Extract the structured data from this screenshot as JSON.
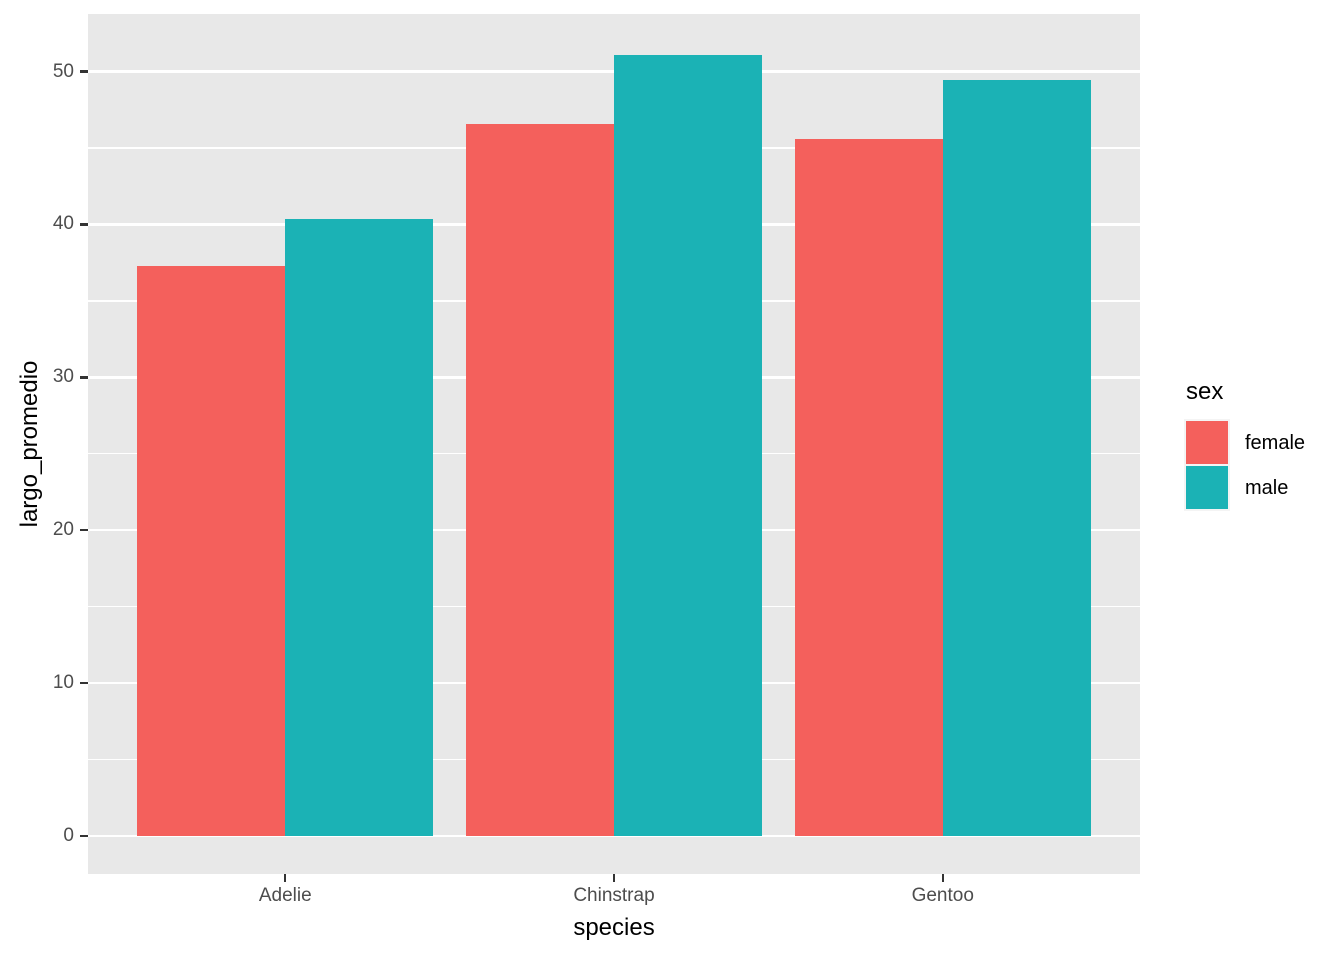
{
  "chart_data": {
    "type": "bar",
    "title": "",
    "xlabel": "species",
    "ylabel": "largo_promedio",
    "categories": [
      "Adelie",
      "Chinstrap",
      "Gentoo"
    ],
    "series": [
      {
        "name": "female",
        "color": "#F4605C",
        "values": [
          37.26,
          46.57,
          45.56
        ]
      },
      {
        "name": "male",
        "color": "#1BB2B5",
        "values": [
          40.39,
          51.09,
          49.47
        ]
      }
    ],
    "legend": {
      "title": "sex",
      "position": "right",
      "entries": [
        "female",
        "male"
      ]
    },
    "y_ticks": [
      0,
      10,
      20,
      30,
      40,
      50
    ],
    "y_tick_labels": [
      "0",
      "10",
      "20",
      "30",
      "40",
      "50"
    ],
    "y_minor_ticks": [
      5,
      15,
      25,
      35,
      45
    ],
    "ylim": [
      -2.49,
      53.77
    ],
    "grid": "on",
    "colors": {
      "panel_background": "#E8E8E8",
      "grid": "#FFFFFF",
      "tick_mark": "#333333",
      "tick_label": "#4D4D4D",
      "axis_title": "#000000",
      "figure_background": "#FFFFFF"
    }
  }
}
